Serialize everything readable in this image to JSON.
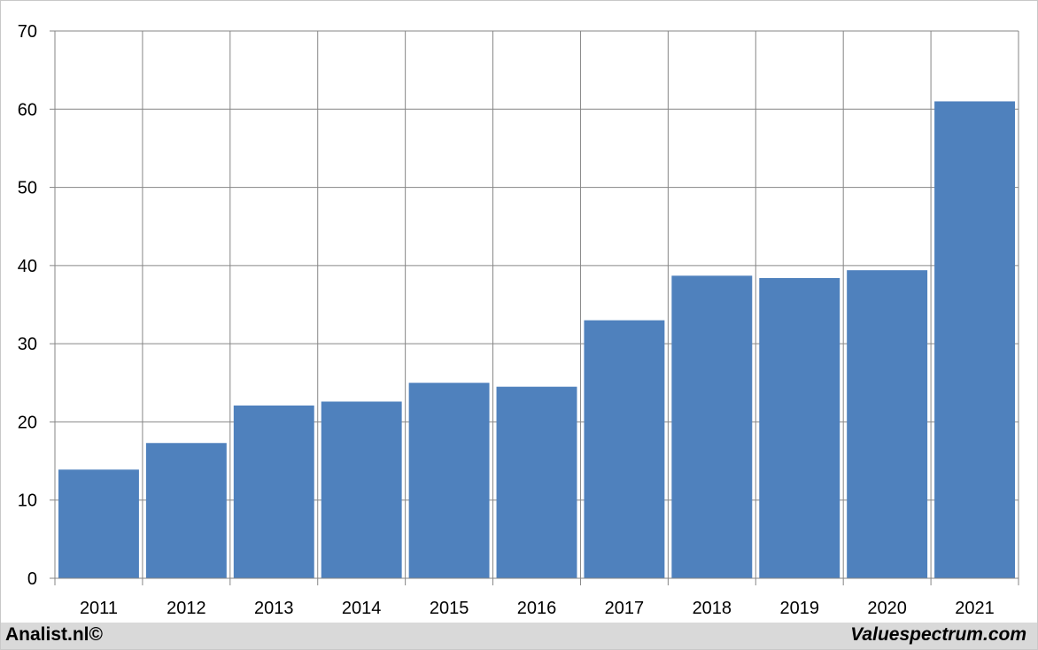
{
  "chart_data": {
    "type": "bar",
    "categories": [
      "2011",
      "2012",
      "2013",
      "2014",
      "2015",
      "2016",
      "2017",
      "2018",
      "2019",
      "2020",
      "2021"
    ],
    "values": [
      13.9,
      17.3,
      22.1,
      22.6,
      25.0,
      24.5,
      33.0,
      38.7,
      38.4,
      39.4,
      61.0
    ],
    "y_ticks": [
      "0",
      "10",
      "20",
      "30",
      "40",
      "50",
      "60",
      "70"
    ],
    "ylim": [
      0,
      70
    ],
    "grid": true,
    "bar_color": "#4f81bd",
    "grid_color": "#868686"
  },
  "footer": {
    "left_text": "Analist.nl©",
    "right_text": "Valuespectrum.com",
    "background": "#d9d9d9"
  }
}
